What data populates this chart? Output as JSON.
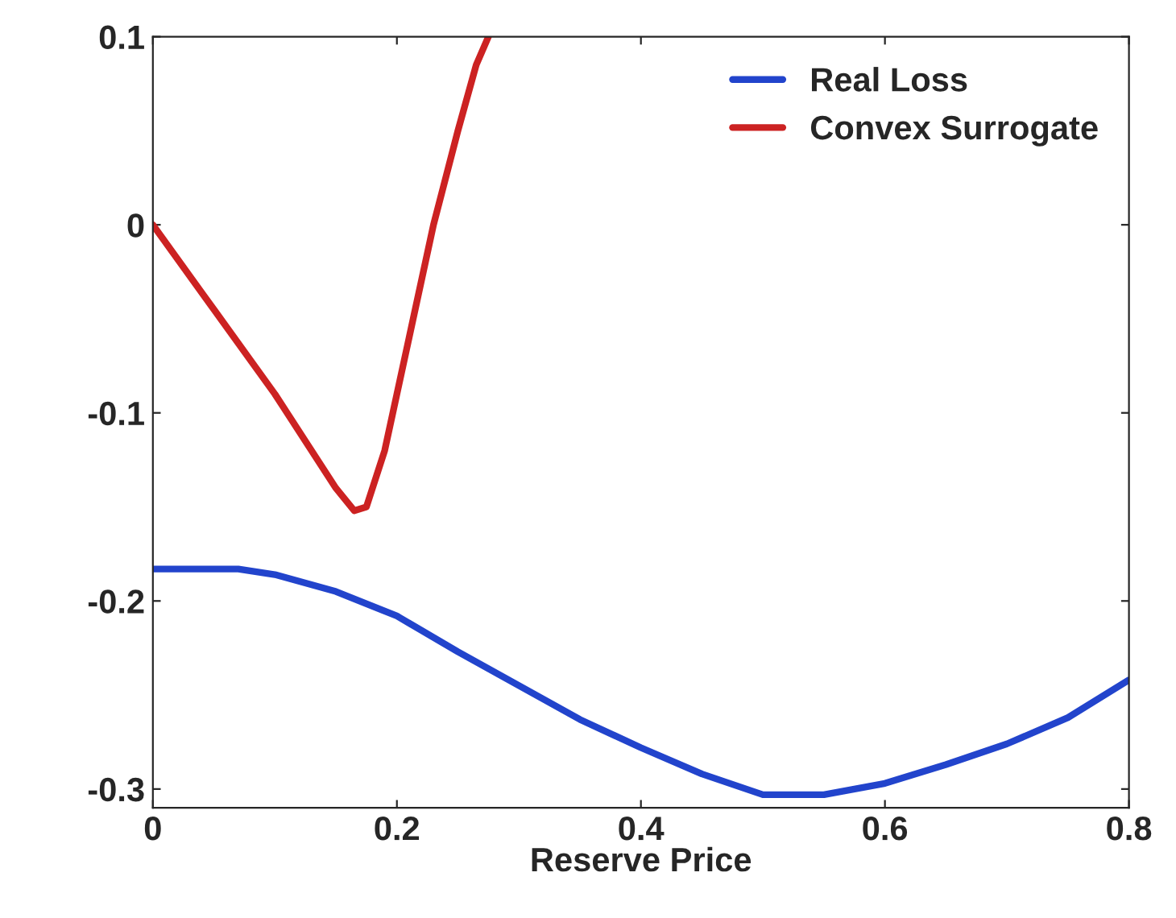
{
  "chart_data": {
    "type": "line",
    "xlabel": "Reserve Price",
    "xlim": [
      0,
      0.8
    ],
    "ylim": [
      -0.31,
      0.1
    ],
    "xticks": [
      0,
      0.2,
      0.4,
      0.6,
      0.8
    ],
    "yticks": [
      -0.3,
      -0.2,
      -0.1,
      0,
      0.1
    ],
    "grid": false,
    "legend": "top right",
    "line_style": "solid",
    "series": [
      {
        "name": "Real Loss",
        "color": "#2244cc",
        "x": [
          0,
          0.04,
          0.07,
          0.1,
          0.15,
          0.2,
          0.25,
          0.3,
          0.35,
          0.4,
          0.45,
          0.5,
          0.55,
          0.6,
          0.65,
          0.7,
          0.75,
          0.8
        ],
        "values": [
          -0.183,
          -0.183,
          -0.183,
          -0.186,
          -0.195,
          -0.208,
          -0.227,
          -0.245,
          -0.263,
          -0.278,
          -0.292,
          -0.303,
          -0.303,
          -0.297,
          -0.287,
          -0.276,
          -0.262,
          -0.242
        ]
      },
      {
        "name": "Convex Surrogate",
        "color": "#cc2222",
        "x": [
          0,
          0.05,
          0.1,
          0.15,
          0.165,
          0.175,
          0.19,
          0.21,
          0.23,
          0.25,
          0.265,
          0.275
        ],
        "values": [
          0,
          -0.045,
          -0.09,
          -0.14,
          -0.152,
          -0.15,
          -0.12,
          -0.06,
          0.0,
          0.05,
          0.085,
          0.1
        ]
      }
    ]
  }
}
